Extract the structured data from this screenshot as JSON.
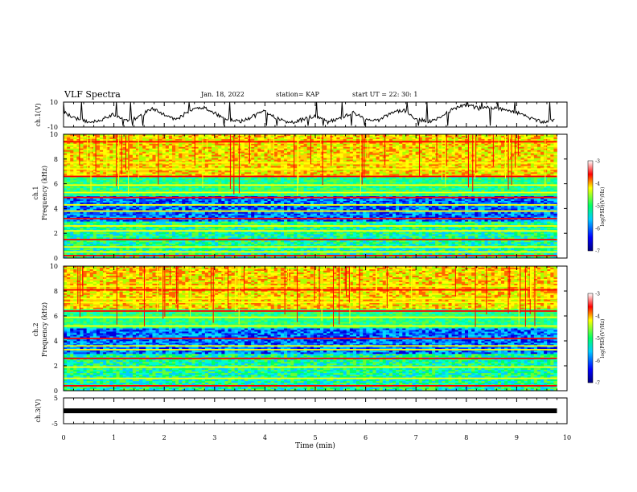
{
  "header": {
    "title": "VLF Spectra",
    "date": "Jan. 18, 2022",
    "station": "station= KAP",
    "start": "start  UT  =   22: 30: 1"
  },
  "xaxis": {
    "label": "Time  (min)",
    "ticks": [
      "0",
      "1",
      "2",
      "3",
      "4",
      "5",
      "6",
      "7",
      "8",
      "9",
      "10"
    ]
  },
  "ch1v": {
    "ylabel": "ch.1(V)",
    "ticks": [
      "10",
      "-10"
    ]
  },
  "ch1": {
    "ylabel_top": "ch.1",
    "ylabel_bottom": "Frequency  (kHz)",
    "ticks": [
      "10",
      "8",
      "6",
      "4",
      "2",
      "0"
    ]
  },
  "ch2": {
    "ylabel_top": "ch.2",
    "ylabel_bottom": "Frequency  (kHz)",
    "ticks": [
      "10",
      "8",
      "6",
      "4",
      "2",
      "0"
    ]
  },
  "ch3v": {
    "ylabel": "ch.3(V)",
    "ticks": [
      "5",
      "-5"
    ]
  },
  "colorbar": {
    "label": "log(PSD)(V²/Hz)",
    "ticks": [
      "-3",
      "-4",
      "-5",
      "-6",
      "-7"
    ]
  },
  "colors": {
    "red": "#ff0000",
    "yellow": "#ffff00",
    "green": "#00ff66",
    "cyan": "#00ffee",
    "blue": "#0000ff",
    "navy": "#000080"
  },
  "chart_data": [
    {
      "type": "line",
      "name": "ch1-voltage",
      "xlabel": "Time (min)",
      "ylabel": "ch.1(V)",
      "xlim": [
        0,
        10
      ],
      "ylim": [
        -10,
        10
      ],
      "x": [
        0,
        0.25,
        0.5,
        0.75,
        1,
        1.25,
        1.5,
        1.75,
        2,
        2.25,
        2.5,
        2.75,
        3,
        3.25,
        3.5,
        3.75,
        4,
        4.25,
        4.5,
        4.75,
        5,
        5.25,
        5.5,
        5.75,
        6,
        6.25,
        6.5,
        6.75,
        7,
        7.25,
        7.5,
        7.75,
        8,
        8.25,
        8.5,
        8.75,
        9,
        9.25,
        9.5,
        9.75
      ],
      "y": [
        2,
        -3,
        -6,
        -4,
        0,
        -5,
        -2,
        5,
        0,
        -4,
        3,
        6,
        1,
        -4,
        -6,
        -2,
        3,
        -3,
        -7,
        -4,
        -1,
        -6,
        -3,
        2,
        -4,
        -5,
        1,
        4,
        -3,
        -6,
        -2,
        5,
        8,
        5,
        6,
        4,
        2,
        -3,
        -6,
        -5
      ]
    },
    {
      "type": "heatmap",
      "name": "ch1-spectrogram",
      "xlabel": "Time (min)",
      "ylabel": "Frequency (kHz)",
      "xlim": [
        0,
        9.8
      ],
      "ylim": [
        0,
        10
      ],
      "colorscale": "log(PSD)(V²/Hz)",
      "zlim": [
        -7,
        -3
      ],
      "bands_khz": [
        0.2,
        0.5,
        0.9,
        1.5,
        2.2,
        2.6,
        3.2,
        3.8,
        4.3,
        4.9,
        5.3,
        5.9,
        6.6,
        7.2,
        7.7,
        9.4
      ]
    },
    {
      "type": "heatmap",
      "name": "ch2-spectrogram",
      "xlabel": "Time (min)",
      "ylabel": "Frequency (kHz)",
      "xlim": [
        0,
        9.8
      ],
      "ylim": [
        0,
        10
      ],
      "colorscale": "log(PSD)(V²/Hz)",
      "zlim": [
        -7,
        -3
      ],
      "bands_khz": [
        0.4,
        1.0,
        1.9,
        2.6,
        3.3,
        3.6,
        4.2,
        5.2,
        5.9,
        6.4,
        7.1,
        7.4,
        8.1,
        8.4
      ]
    },
    {
      "type": "line",
      "name": "ch3-voltage",
      "xlabel": "Time (min)",
      "ylabel": "ch.3(V)",
      "xlim": [
        0,
        10
      ],
      "ylim": [
        -5,
        5
      ],
      "x": [
        0,
        9.8
      ],
      "y": [
        0,
        0
      ]
    }
  ]
}
